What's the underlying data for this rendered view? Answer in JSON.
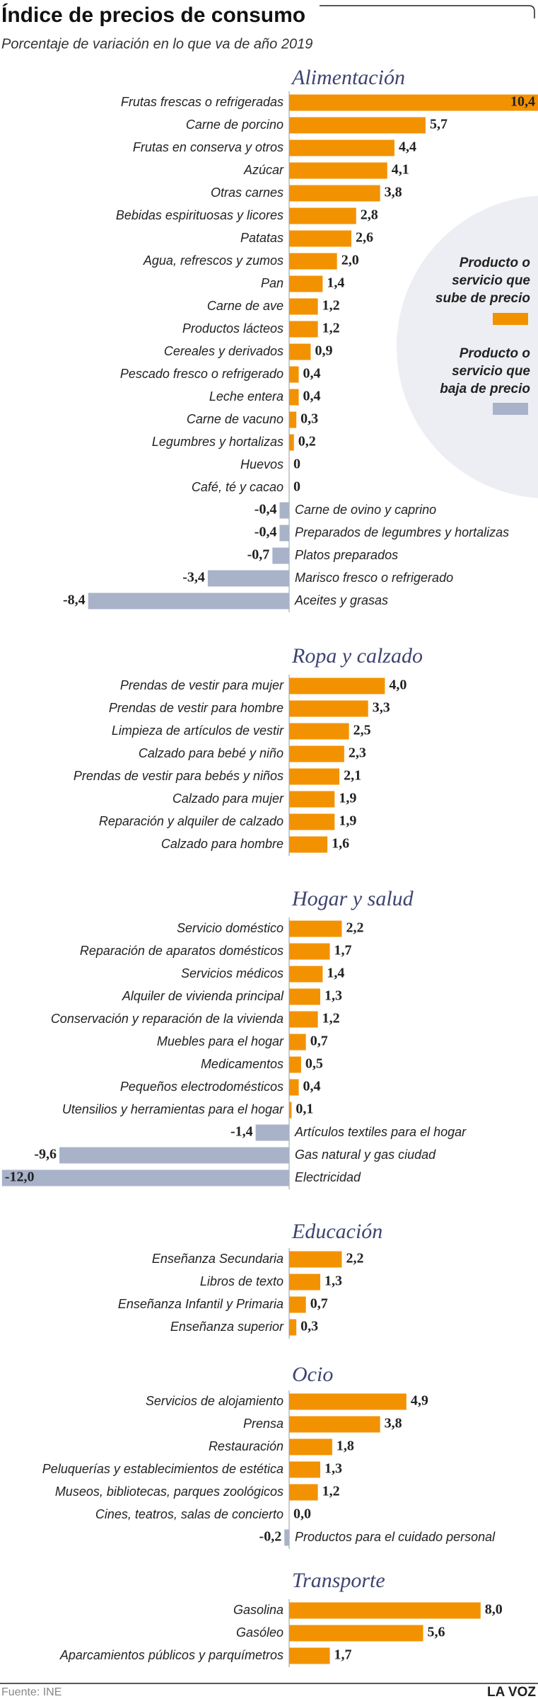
{
  "title": "Índice de precios de consumo",
  "subtitle": "Porcentaje de variación en lo que va de año 2019",
  "legend": [
    {
      "lines": [
        "Producto o",
        "servicio que",
        "sube de precio"
      ],
      "color": "#f39200"
    },
    {
      "lines": [
        "Producto o",
        "servicio que",
        "baja de precio"
      ],
      "color": "#a8b3c9"
    }
  ],
  "source": "Fuente: INE",
  "brand": "LA VOZ",
  "chart_data": [
    {
      "type": "bar",
      "title": "Alimentación",
      "categories": [
        "Frutas frescas o refrigeradas",
        "Carne de porcino",
        "Frutas en conserva y otros",
        "Azúcar",
        "Otras carnes",
        "Bebidas espirituosas y licores",
        "Patatas",
        "Agua, refrescos y zumos",
        "Pan",
        "Carne de ave",
        "Productos lácteos",
        "Cereales y derivados",
        "Pescado fresco o refrigerado",
        "Leche entera",
        "Carne de vacuno",
        "Legumbres y hortalizas",
        "Huevos",
        "Café, té y cacao",
        "Carne de ovino y caprino",
        "Preparados de legumbres y hortalizas",
        "Platos preparados",
        "Marisco fresco o refrigerado",
        "Aceites y grasas"
      ],
      "values": [
        10.4,
        5.7,
        4.4,
        4.1,
        3.8,
        2.8,
        2.6,
        2.0,
        1.4,
        1.2,
        1.2,
        0.9,
        0.4,
        0.4,
        0.3,
        0.2,
        0,
        0,
        -0.4,
        -0.4,
        -0.7,
        -3.4,
        -8.4
      ],
      "value_labels": [
        "10,4",
        "5,7",
        "4,4",
        "4,1",
        "3,8",
        "2,8",
        "2,6",
        "2,0",
        "1,4",
        "1,2",
        "1,2",
        "0,9",
        "0,4",
        "0,4",
        "0,3",
        "0,2",
        "0",
        "0",
        "-0,4",
        "-0,4",
        "-0,7",
        "-3,4",
        "-8,4"
      ]
    },
    {
      "type": "bar",
      "title": "Ropa y calzado",
      "categories": [
        "Prendas de vestir para mujer",
        "Prendas de vestir para hombre",
        "Limpieza de artículos de vestir",
        "Calzado para bebé y niño",
        "Prendas de vestir para bebés y niños",
        "Calzado para mujer",
        "Reparación y alquiler de calzado",
        "Calzado para hombre"
      ],
      "values": [
        4.0,
        3.3,
        2.5,
        2.3,
        2.1,
        1.9,
        1.9,
        1.6
      ],
      "value_labels": [
        "4,0",
        "3,3",
        "2,5",
        "2,3",
        "2,1",
        "1,9",
        "1,9",
        "1,6"
      ]
    },
    {
      "type": "bar",
      "title": "Hogar y salud",
      "categories": [
        "Servicio doméstico",
        "Reparación de aparatos domésticos",
        "Servicios médicos",
        "Alquiler de vivienda principal",
        "Conservación y reparación de la vivienda",
        "Muebles para el hogar",
        "Medicamentos",
        "Pequeños electrodomésticos",
        "Utensilios y herramientas para el hogar",
        "Artículos textiles para el hogar",
        "Gas natural y gas ciudad",
        "Electricidad"
      ],
      "values": [
        2.2,
        1.7,
        1.4,
        1.3,
        1.2,
        0.7,
        0.5,
        0.4,
        0.1,
        -1.4,
        -9.6,
        -12.0
      ],
      "value_labels": [
        "2,2",
        "1,7",
        "1,4",
        "1,3",
        "1,2",
        "0,7",
        "0,5",
        "0,4",
        "0,1",
        "-1,4",
        "-9,6",
        "-12,0"
      ]
    },
    {
      "type": "bar",
      "title": "Educación",
      "categories": [
        "Enseñanza Secundaria",
        "Libros de texto",
        "Enseñanza Infantil y Primaria",
        "Enseñanza superior"
      ],
      "values": [
        2.2,
        1.3,
        0.7,
        0.3
      ],
      "value_labels": [
        "2,2",
        "1,3",
        "0,7",
        "0,3"
      ]
    },
    {
      "type": "bar",
      "title": "Ocio",
      "categories": [
        "Servicios de alojamiento",
        "Prensa",
        "Restauración",
        "Peluquerías y establecimientos de estética",
        "Museos, bibliotecas, parques zoológicos",
        "Cines, teatros, salas de concierto",
        "Productos para el cuidado personal"
      ],
      "values": [
        4.9,
        3.8,
        1.8,
        1.3,
        1.2,
        0.0,
        -0.2
      ],
      "value_labels": [
        "4,9",
        "3,8",
        "1,8",
        "1,3",
        "1,2",
        "0,0",
        "-0,2"
      ]
    },
    {
      "type": "bar",
      "title": "Transporte",
      "categories": [
        "Gasolina",
        "Gasóleo",
        "Aparcamientos públicos y parquímetros"
      ],
      "values": [
        8.0,
        5.6,
        1.7
      ],
      "value_labels": [
        "8,0",
        "5,6",
        "1,7"
      ]
    }
  ]
}
